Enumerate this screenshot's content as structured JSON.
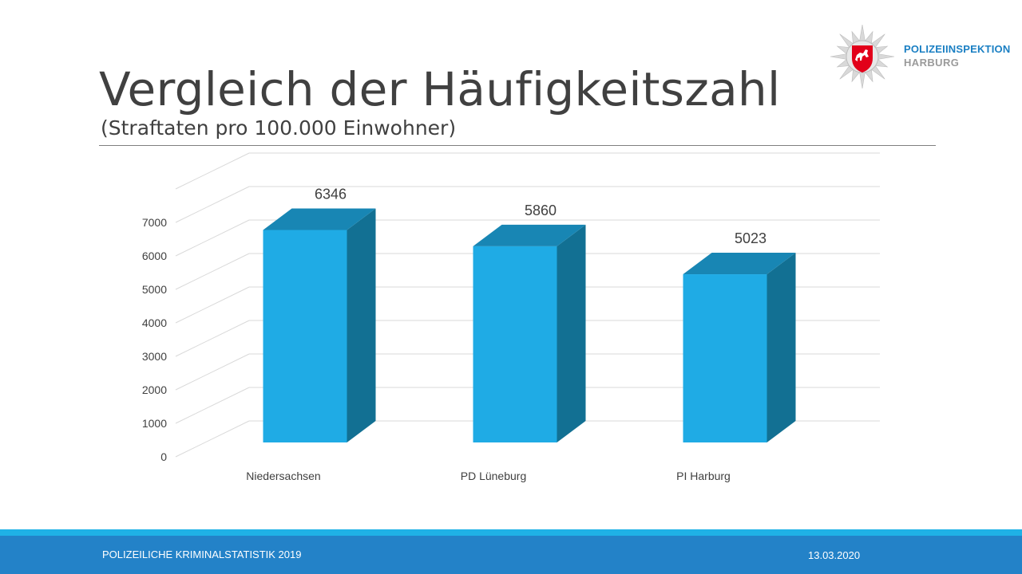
{
  "slide": {
    "title": "Vergleich der Häufigkeitszahl",
    "subtitle": "(Straftaten pro 100.000 Einwohner)"
  },
  "logo": {
    "name": "POLIZEIINSPEKTION",
    "sub": "HARBURG",
    "primary_color": "#1a7fc3",
    "secondary_color": "#9a9a9a"
  },
  "chart_data": {
    "type": "bar",
    "style": "3d-column",
    "categories": [
      "Niedersachsen",
      "PD Lüneburg",
      "PI Harburg"
    ],
    "values": [
      6346,
      5860,
      5023
    ],
    "data_labels": [
      "6346",
      "5860",
      "5023"
    ],
    "y_ticks": [
      "0",
      "1000",
      "2000",
      "3000",
      "4000",
      "5000",
      "6000",
      "7000"
    ],
    "ylim": [
      0,
      8000
    ],
    "grid": true,
    "legend": "none",
    "bar_color": "#1fabe5",
    "bar_top_color": "#1886b4",
    "bar_side_color": "#127093"
  },
  "footer": {
    "left": "POLIZEILICHE KRIMINALSTATISTIK 2019",
    "right": "13.03.2020",
    "band_color": "#2382c8",
    "accent_color": "#1fb1e6"
  }
}
